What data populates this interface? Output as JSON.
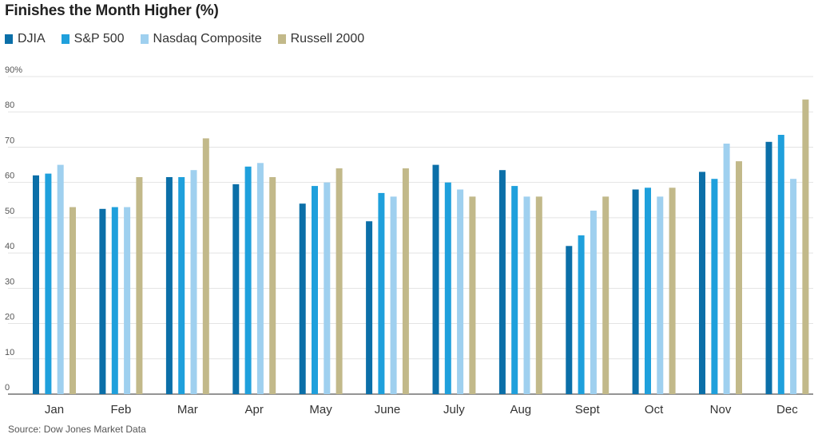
{
  "chart_data": {
    "type": "bar",
    "title": "Finishes the Month Higher (%)",
    "source": "Source: Dow Jones Market Data",
    "categories": [
      "Jan",
      "Feb",
      "Mar",
      "Apr",
      "May",
      "June",
      "July",
      "Aug",
      "Sept",
      "Oct",
      "Nov",
      "Dec"
    ],
    "series": [
      {
        "name": "DJIA",
        "color": "#0b6fa8",
        "values": [
          62,
          52.5,
          61.5,
          59.5,
          54,
          49,
          65,
          63.5,
          42,
          58,
          63,
          71.5
        ]
      },
      {
        "name": "S&P 500",
        "color": "#1fa0dc",
        "values": [
          62.5,
          53,
          61.5,
          64.5,
          59,
          57,
          60,
          59,
          45,
          58.5,
          61,
          73.5
        ]
      },
      {
        "name": "Nasdaq Composite",
        "color": "#9fd0ef",
        "values": [
          65,
          53,
          63.5,
          65.5,
          60,
          56,
          58,
          56,
          52,
          56,
          71,
          61
        ]
      },
      {
        "name": "Russell 2000",
        "color": "#c2b98a",
        "values": [
          53,
          61.5,
          72.5,
          61.5,
          64,
          64,
          56,
          56,
          56,
          58.5,
          66,
          83.5
        ]
      }
    ],
    "y_ticks": [
      "90%",
      "80",
      "70",
      "60",
      "50",
      "40",
      "30",
      "20",
      "10",
      "0"
    ],
    "ylim": [
      0,
      90
    ],
    "grid": true,
    "legend": "top-left"
  }
}
